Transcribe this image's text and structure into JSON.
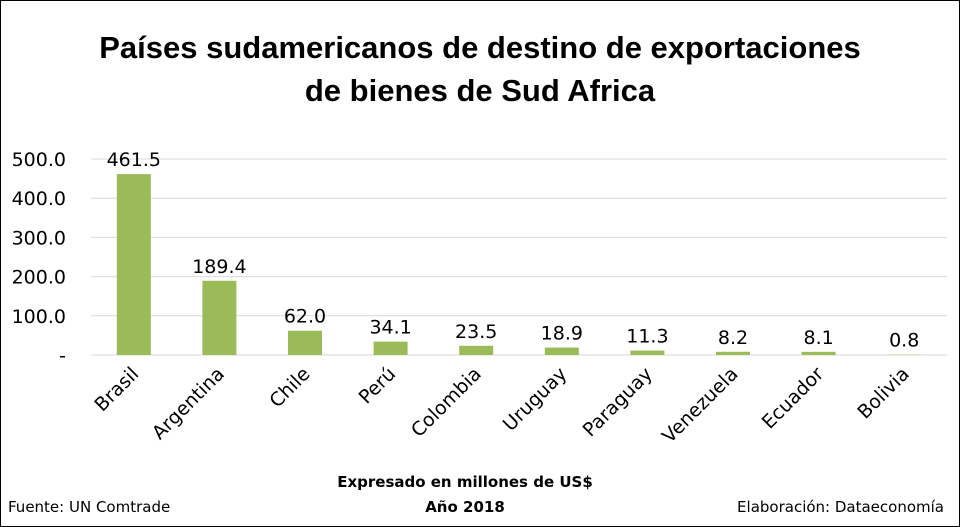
{
  "chart_data": {
    "type": "bar",
    "title": "Países sudamericanos de destino de exportaciones de bienes de Sud Africa",
    "title_lines": [
      "Países sudamericanos de destino de exportaciones",
      "de bienes de Sud Africa"
    ],
    "categories": [
      "Brasil",
      "Argentina",
      "Chile",
      "Perú",
      "Colombia",
      "Uruguay",
      "Paraguay",
      "Venezuela",
      "Ecuador",
      "Bolivia"
    ],
    "values": [
      461.5,
      189.4,
      62.0,
      34.1,
      23.5,
      18.9,
      11.3,
      8.2,
      8.1,
      0.8
    ],
    "value_labels": [
      "461.5",
      "189.4",
      "62.0",
      "34.1",
      "23.5",
      "18.9",
      "11.3",
      "8.2",
      "8.1",
      "0.8"
    ],
    "yticks": [
      0,
      100,
      200,
      300,
      400,
      500
    ],
    "ytick_labels": [
      "-",
      "100.0",
      "200.0",
      "300.0",
      "400.0",
      "500.0"
    ],
    "ylim": [
      0,
      500
    ],
    "xlabel": "Expresado en millones de US$",
    "ylabel": "",
    "grid": true,
    "bar_color": "#9BBB59",
    "grid_color": "#D9D9D9"
  },
  "footer": {
    "source": "Fuente: UN Comtrade",
    "unit": "Expresado en millones de US$",
    "year": "Año 2018",
    "credit": "Elaboración: Dataeconomía"
  }
}
